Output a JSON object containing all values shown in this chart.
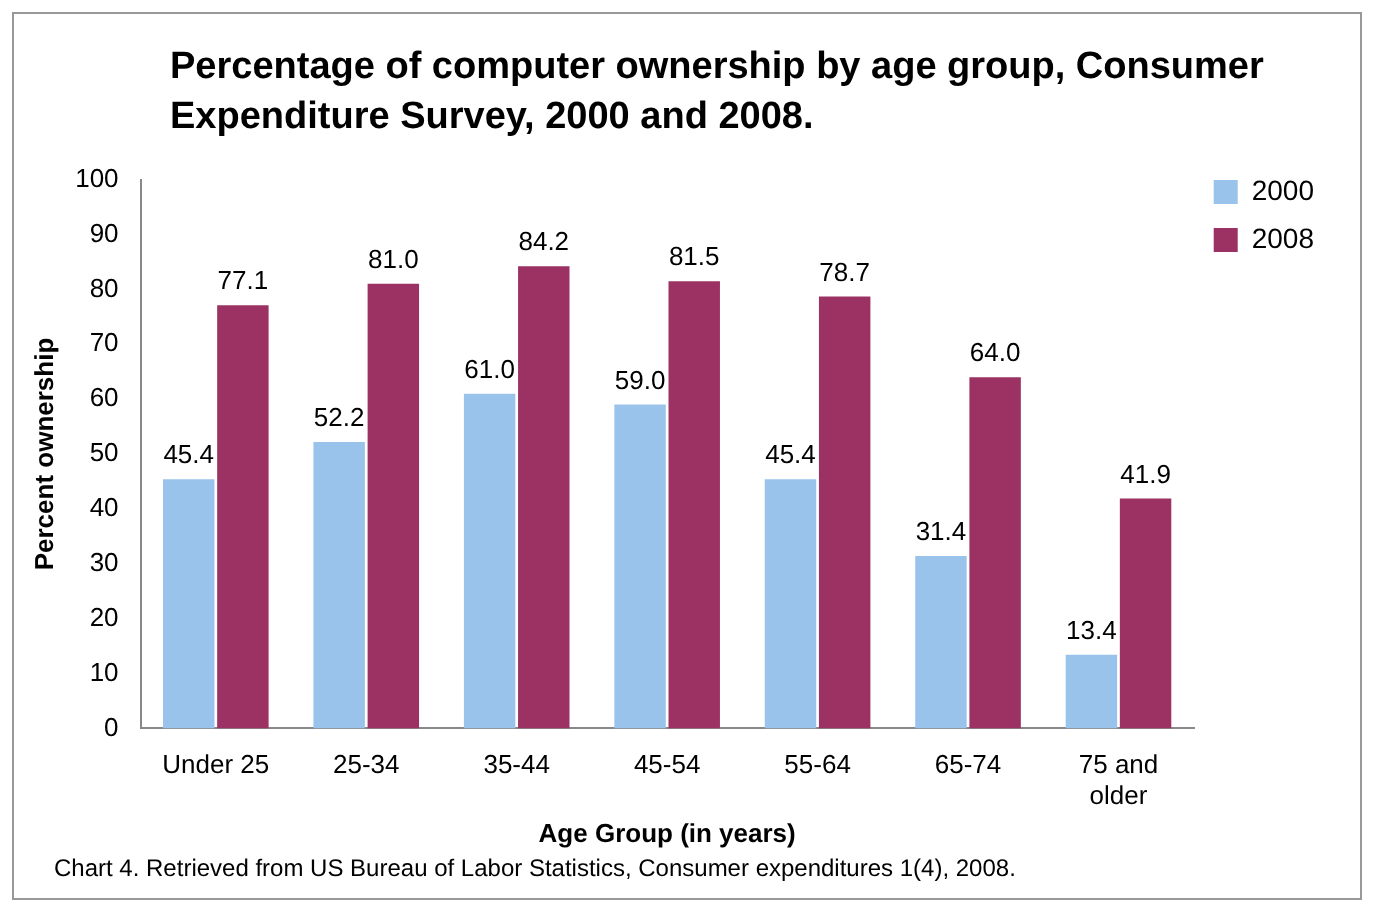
{
  "chart_data": {
    "type": "bar",
    "title": "Percentage of computer ownership by age group, Consumer Expenditure Survey, 2000 and 2008.",
    "xlabel": "Age Group (in years)",
    "ylabel": "Percent ownership",
    "categories": [
      "Under 25",
      "25-34",
      "35-44",
      "45-54",
      "55-64",
      "65-74",
      "75 and older"
    ],
    "series": [
      {
        "name": "2000",
        "color": "#99c3ea",
        "values": [
          45.4,
          52.2,
          61,
          59,
          45.4,
          31.4,
          13.4
        ],
        "value_labels": [
          "45.4",
          "52.2",
          "61.0",
          "59.0",
          "45.4",
          "31.4",
          "13.4"
        ]
      },
      {
        "name": "2008",
        "color": "#9b3263",
        "values": [
          77.1,
          81,
          84.2,
          81.5,
          78.7,
          64,
          41.9
        ],
        "value_labels": [
          "77.1",
          "81.0",
          "84.2",
          "81.5",
          "78.7",
          "64.0",
          "41.9"
        ]
      }
    ],
    "ylim": [
      0,
      100
    ],
    "yticks": [
      0,
      10,
      20,
      30,
      40,
      50,
      60,
      70,
      80,
      90,
      100
    ],
    "grid": false,
    "legend": "right",
    "annotations": [
      "Chart 4. Retrieved from US Bureau of Labor Statistics, Consumer expenditures 1(4), 2008."
    ]
  }
}
